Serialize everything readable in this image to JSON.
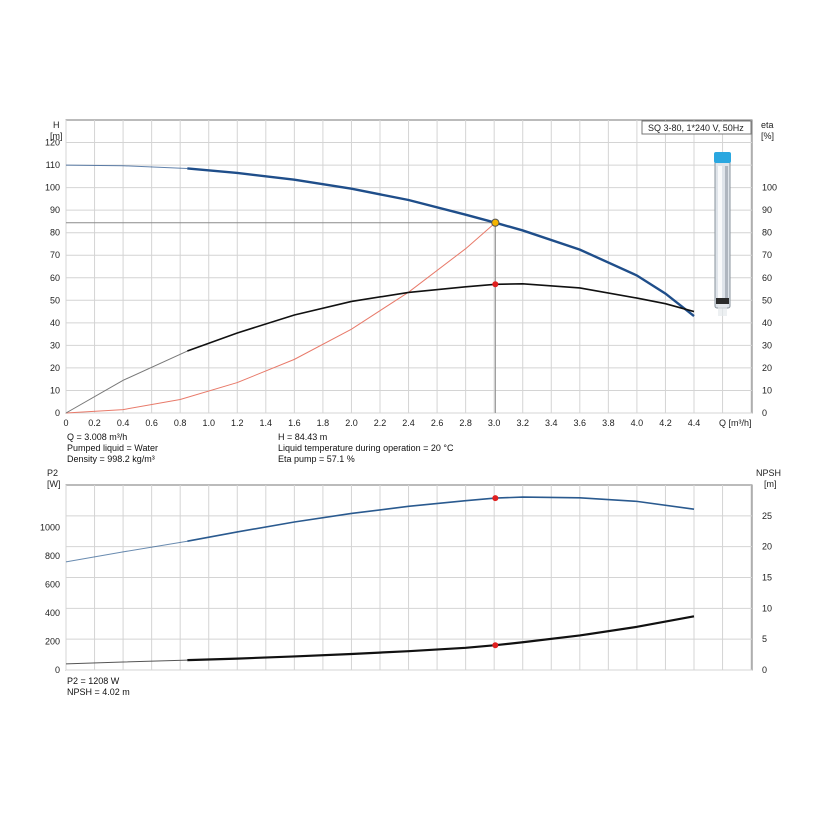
{
  "pump_label": "SQ 3-80, 1*240 V, 50Hz",
  "colors": {
    "head_curve": "#1f4e8a",
    "eta_curve": "#111111",
    "system_curve": "#e87a6a",
    "power_curve": "#2a5a8f",
    "npsh_curve": "#111111",
    "duty_point_fill": "#f5b400",
    "operating_marker": "#e02020",
    "grid": "#d4d4d4",
    "axis": "#777777"
  },
  "chart_data": [
    {
      "type": "line",
      "name": "head-eta",
      "xlabel": "Q [m³/h]",
      "ylabel_lines": [
        "H",
        "[m]"
      ],
      "y2label_lines": [
        "eta",
        "[%]"
      ],
      "xlim": [
        0,
        4.4
      ],
      "ylim": [
        0,
        130
      ],
      "y2lim": [
        0,
        130
      ],
      "x_ticks": [
        "0",
        "0.2",
        "0.4",
        "0.6",
        "0.8",
        "1.0",
        "1.2",
        "1.4",
        "1.6",
        "1.8",
        "2.0",
        "2.2",
        "2.4",
        "2.6",
        "2.8",
        "3.0",
        "3.2",
        "3.4",
        "3.6",
        "3.8",
        "4.0",
        "4.2",
        "4.4"
      ],
      "y_ticks": [
        0,
        10,
        20,
        30,
        40,
        50,
        60,
        70,
        80,
        90,
        100,
        110,
        120
      ],
      "y2_ticks": [
        0,
        10,
        20,
        30,
        40,
        50,
        60,
        70,
        80,
        90,
        100
      ],
      "grid": true,
      "series": [
        {
          "key": "head",
          "x": [
            0,
            0.4,
            0.85,
            1.2,
            1.6,
            2.0,
            2.4,
            2.8,
            3.008,
            3.2,
            3.6,
            4.0,
            4.2,
            4.4
          ],
          "y": [
            110,
            109.7,
            108.5,
            106.5,
            103.5,
            99.5,
            94.5,
            88,
            84.43,
            81,
            72.5,
            61,
            53,
            43
          ]
        },
        {
          "key": "eta",
          "x": [
            0,
            0.4,
            0.85,
            1.2,
            1.6,
            2.0,
            2.4,
            2.8,
            3.008,
            3.2,
            3.6,
            4.0,
            4.2,
            4.4
          ],
          "y": [
            0,
            14.5,
            27.5,
            35.5,
            43.5,
            49.5,
            53.5,
            56,
            57.1,
            57.3,
            55.5,
            51,
            48.5,
            45
          ]
        },
        {
          "key": "system",
          "x": [
            0,
            0.4,
            0.8,
            1.2,
            1.6,
            2.0,
            2.4,
            2.8,
            3.008
          ],
          "y": [
            0,
            1.5,
            6,
            13.5,
            23.8,
            37.2,
            53.6,
            72.9,
            84.43
          ]
        }
      ],
      "duty_point": {
        "x": 3.008,
        "y": 84.43
      },
      "eta_point": {
        "x": 3.008,
        "y": 57.1
      }
    },
    {
      "type": "line",
      "name": "power-npsh",
      "ylabel_lines": [
        "P2",
        "[W]"
      ],
      "y2label_lines": [
        "NPSH",
        "[m]"
      ],
      "xlim": [
        0,
        4.4
      ],
      "ylim": [
        0,
        1300
      ],
      "y2lim": [
        0,
        30
      ],
      "y_ticks": [
        0,
        200,
        400,
        600,
        800,
        1000
      ],
      "y2_ticks": [
        0,
        5,
        10,
        15,
        20,
        25
      ],
      "grid": true,
      "series": [
        {
          "key": "power",
          "x": [
            0,
            0.4,
            0.85,
            1.2,
            1.6,
            2.0,
            2.4,
            2.8,
            3.008,
            3.2,
            3.6,
            4.0,
            4.4
          ],
          "y": [
            760,
            830,
            905,
            970,
            1040,
            1100,
            1150,
            1190,
            1208,
            1215,
            1210,
            1185,
            1130
          ]
        },
        {
          "key": "npsh",
          "x": [
            0,
            0.4,
            0.85,
            1.2,
            1.6,
            2.0,
            2.4,
            2.8,
            3.008,
            3.2,
            3.6,
            4.0,
            4.4
          ],
          "y": [
            1,
            1.3,
            1.6,
            1.85,
            2.2,
            2.6,
            3.05,
            3.6,
            4.02,
            4.5,
            5.6,
            7.0,
            8.7
          ]
        }
      ],
      "power_point": {
        "x": 3.008,
        "y": 1208
      },
      "npsh_point": {
        "x": 3.008,
        "y": 4.02
      }
    }
  ],
  "upper_readout": {
    "col1": [
      "Q = 3.008 m³/h",
      "Pumped liquid = Water",
      "Density = 998.2 kg/m³"
    ],
    "col2": [
      "H = 84.43 m",
      "Liquid temperature during operation = 20 °C",
      "Eta pump = 57.1 %"
    ]
  },
  "lower_readout": [
    "P2 = 1208 W",
    "NPSH = 4.02 m"
  ]
}
